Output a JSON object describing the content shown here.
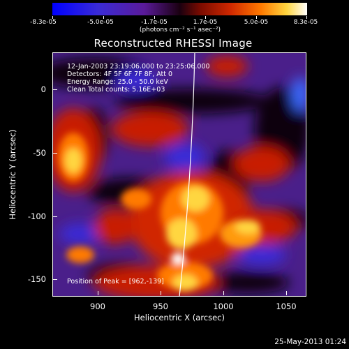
{
  "colorbar": {
    "tick_labels": [
      "-8.3e-05",
      "-5.0e-05",
      "-1.7e-05",
      "1.7e-05",
      "5.0e-05",
      "8.3e-05"
    ],
    "unit_label": "(photons cm⁻² s⁻¹ asec⁻²)"
  },
  "title": "Reconstructed RHESSI Image",
  "annotations": {
    "time_range": "12-Jan-2003 23:19:06.000 to 23:25:06.000",
    "detectors": "Detectors: 4F 5F 6F 7F 8F, Att 0",
    "energy_range": "Energy Range: 25.0 - 50.0 keV",
    "algorithm": "Clean     Total counts: 5.16E+03",
    "peak": "Position of Peak = [962,-139]"
  },
  "axes": {
    "xlabel": "Heliocentric X (arcsec)",
    "ylabel": "Heliocentric Y (arcsec)",
    "xticks": [
      "900",
      "950",
      "1000",
      "1050"
    ],
    "yticks": [
      "0",
      "-50",
      "-100",
      "-150"
    ]
  },
  "timestamp": "25-May-2013 01:24",
  "colors": {
    "background": "#000000",
    "foreground": "#ffffff",
    "colormap": [
      "#0000ff",
      "#5a1a9a",
      "#1a0010",
      "#d02800",
      "#ff7a00",
      "#ffd640",
      "#ffffff"
    ]
  }
}
